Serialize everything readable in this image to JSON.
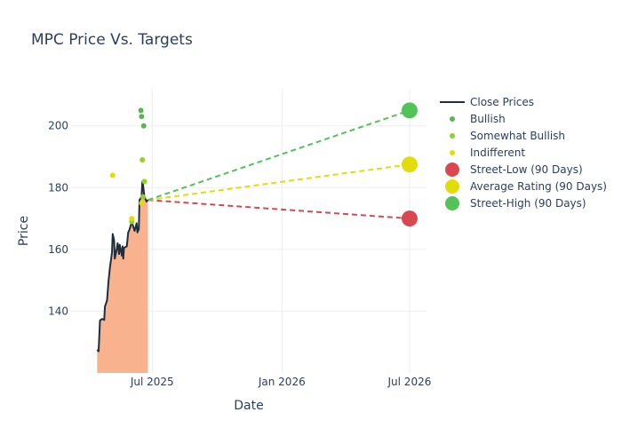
{
  "chart_data": {
    "type": "line",
    "title": "MPC Price Vs. Targets",
    "xlabel": "Date",
    "ylabel": "Price",
    "x_axis": {
      "range": [
        "2025-03-08",
        "2026-07-25"
      ],
      "ticks": [
        {
          "date": "2025-07-01",
          "label": "Jul 2025"
        },
        {
          "date": "2026-01-01",
          "label": "Jan 2026"
        },
        {
          "date": "2026-07-01",
          "label": "Jul 2026"
        }
      ]
    },
    "y_axis": {
      "range": [
        120,
        212
      ],
      "ticks": [
        140,
        160,
        180,
        200
      ]
    },
    "grid": true,
    "legend_position": "right",
    "close_prices": {
      "name": "Close Prices",
      "color": "#1f2d3d",
      "fill_color": "#f9b28e",
      "points": [
        [
          "2025-04-14",
          127.5
        ],
        [
          "2025-04-16",
          127.0
        ],
        [
          "2025-04-18",
          137.0
        ],
        [
          "2025-04-21",
          137.5
        ],
        [
          "2025-04-24",
          137.2
        ],
        [
          "2025-04-25",
          141.5
        ],
        [
          "2025-04-28",
          143.5
        ],
        [
          "2025-04-30",
          149.5
        ],
        [
          "2025-05-02",
          154.0
        ],
        [
          "2025-05-05",
          159.0
        ],
        [
          "2025-05-06",
          165.0
        ],
        [
          "2025-05-08",
          163.0
        ],
        [
          "2025-05-09",
          157.0
        ],
        [
          "2025-05-12",
          160.5
        ],
        [
          "2025-05-13",
          162.0
        ],
        [
          "2025-05-15",
          158.5
        ],
        [
          "2025-05-16",
          161.5
        ],
        [
          "2025-05-19",
          158.0
        ],
        [
          "2025-05-20",
          161.0
        ],
        [
          "2025-05-21",
          157.0
        ],
        [
          "2025-05-22",
          160.5
        ],
        [
          "2025-05-26",
          161.0
        ],
        [
          "2025-05-28",
          165.5
        ],
        [
          "2025-05-30",
          166.5
        ],
        [
          "2025-06-02",
          169.0
        ],
        [
          "2025-06-04",
          167.5
        ],
        [
          "2025-06-06",
          166.0
        ],
        [
          "2025-06-09",
          168.5
        ],
        [
          "2025-06-10",
          165.5
        ],
        [
          "2025-06-12",
          166.5
        ],
        [
          "2025-06-13",
          176.0
        ],
        [
          "2025-06-16",
          177.0
        ],
        [
          "2025-06-17",
          182.0
        ],
        [
          "2025-06-18",
          181.0
        ],
        [
          "2025-06-20",
          177.0
        ],
        [
          "2025-06-23",
          175.5
        ],
        [
          "2025-06-25",
          176.0
        ]
      ]
    },
    "ratings": [
      {
        "name": "Bullish",
        "color": "#5ab552",
        "points": [
          [
            "2025-06-15",
            205
          ],
          [
            "2025-06-16",
            203
          ],
          [
            "2025-06-19",
            200
          ]
        ]
      },
      {
        "name": "Somewhat Bullish",
        "color": "#8ed22c",
        "points": [
          [
            "2025-06-17",
            189
          ],
          [
            "2025-06-20",
            182
          ],
          [
            "2025-06-18",
            177
          ],
          [
            "2025-06-02",
            169
          ]
        ]
      },
      {
        "name": "Indifferent",
        "color": "#e2dc08",
        "points": [
          [
            "2025-05-06",
            184
          ],
          [
            "2025-06-02",
            170
          ],
          [
            "2025-06-16",
            175
          ]
        ]
      }
    ],
    "targets": {
      "start": [
        "2025-06-25",
        176.0
      ],
      "end_date": "2026-07-01",
      "series": [
        {
          "name": "Street-Low (90 Days)",
          "value": 170,
          "color": "#d9484f"
        },
        {
          "name": "Average Rating (90 Days)",
          "value": 187.5,
          "color": "#e2dc08"
        },
        {
          "name": "Street-High (90 Days)",
          "value": 205,
          "color": "#51c358"
        }
      ]
    }
  }
}
